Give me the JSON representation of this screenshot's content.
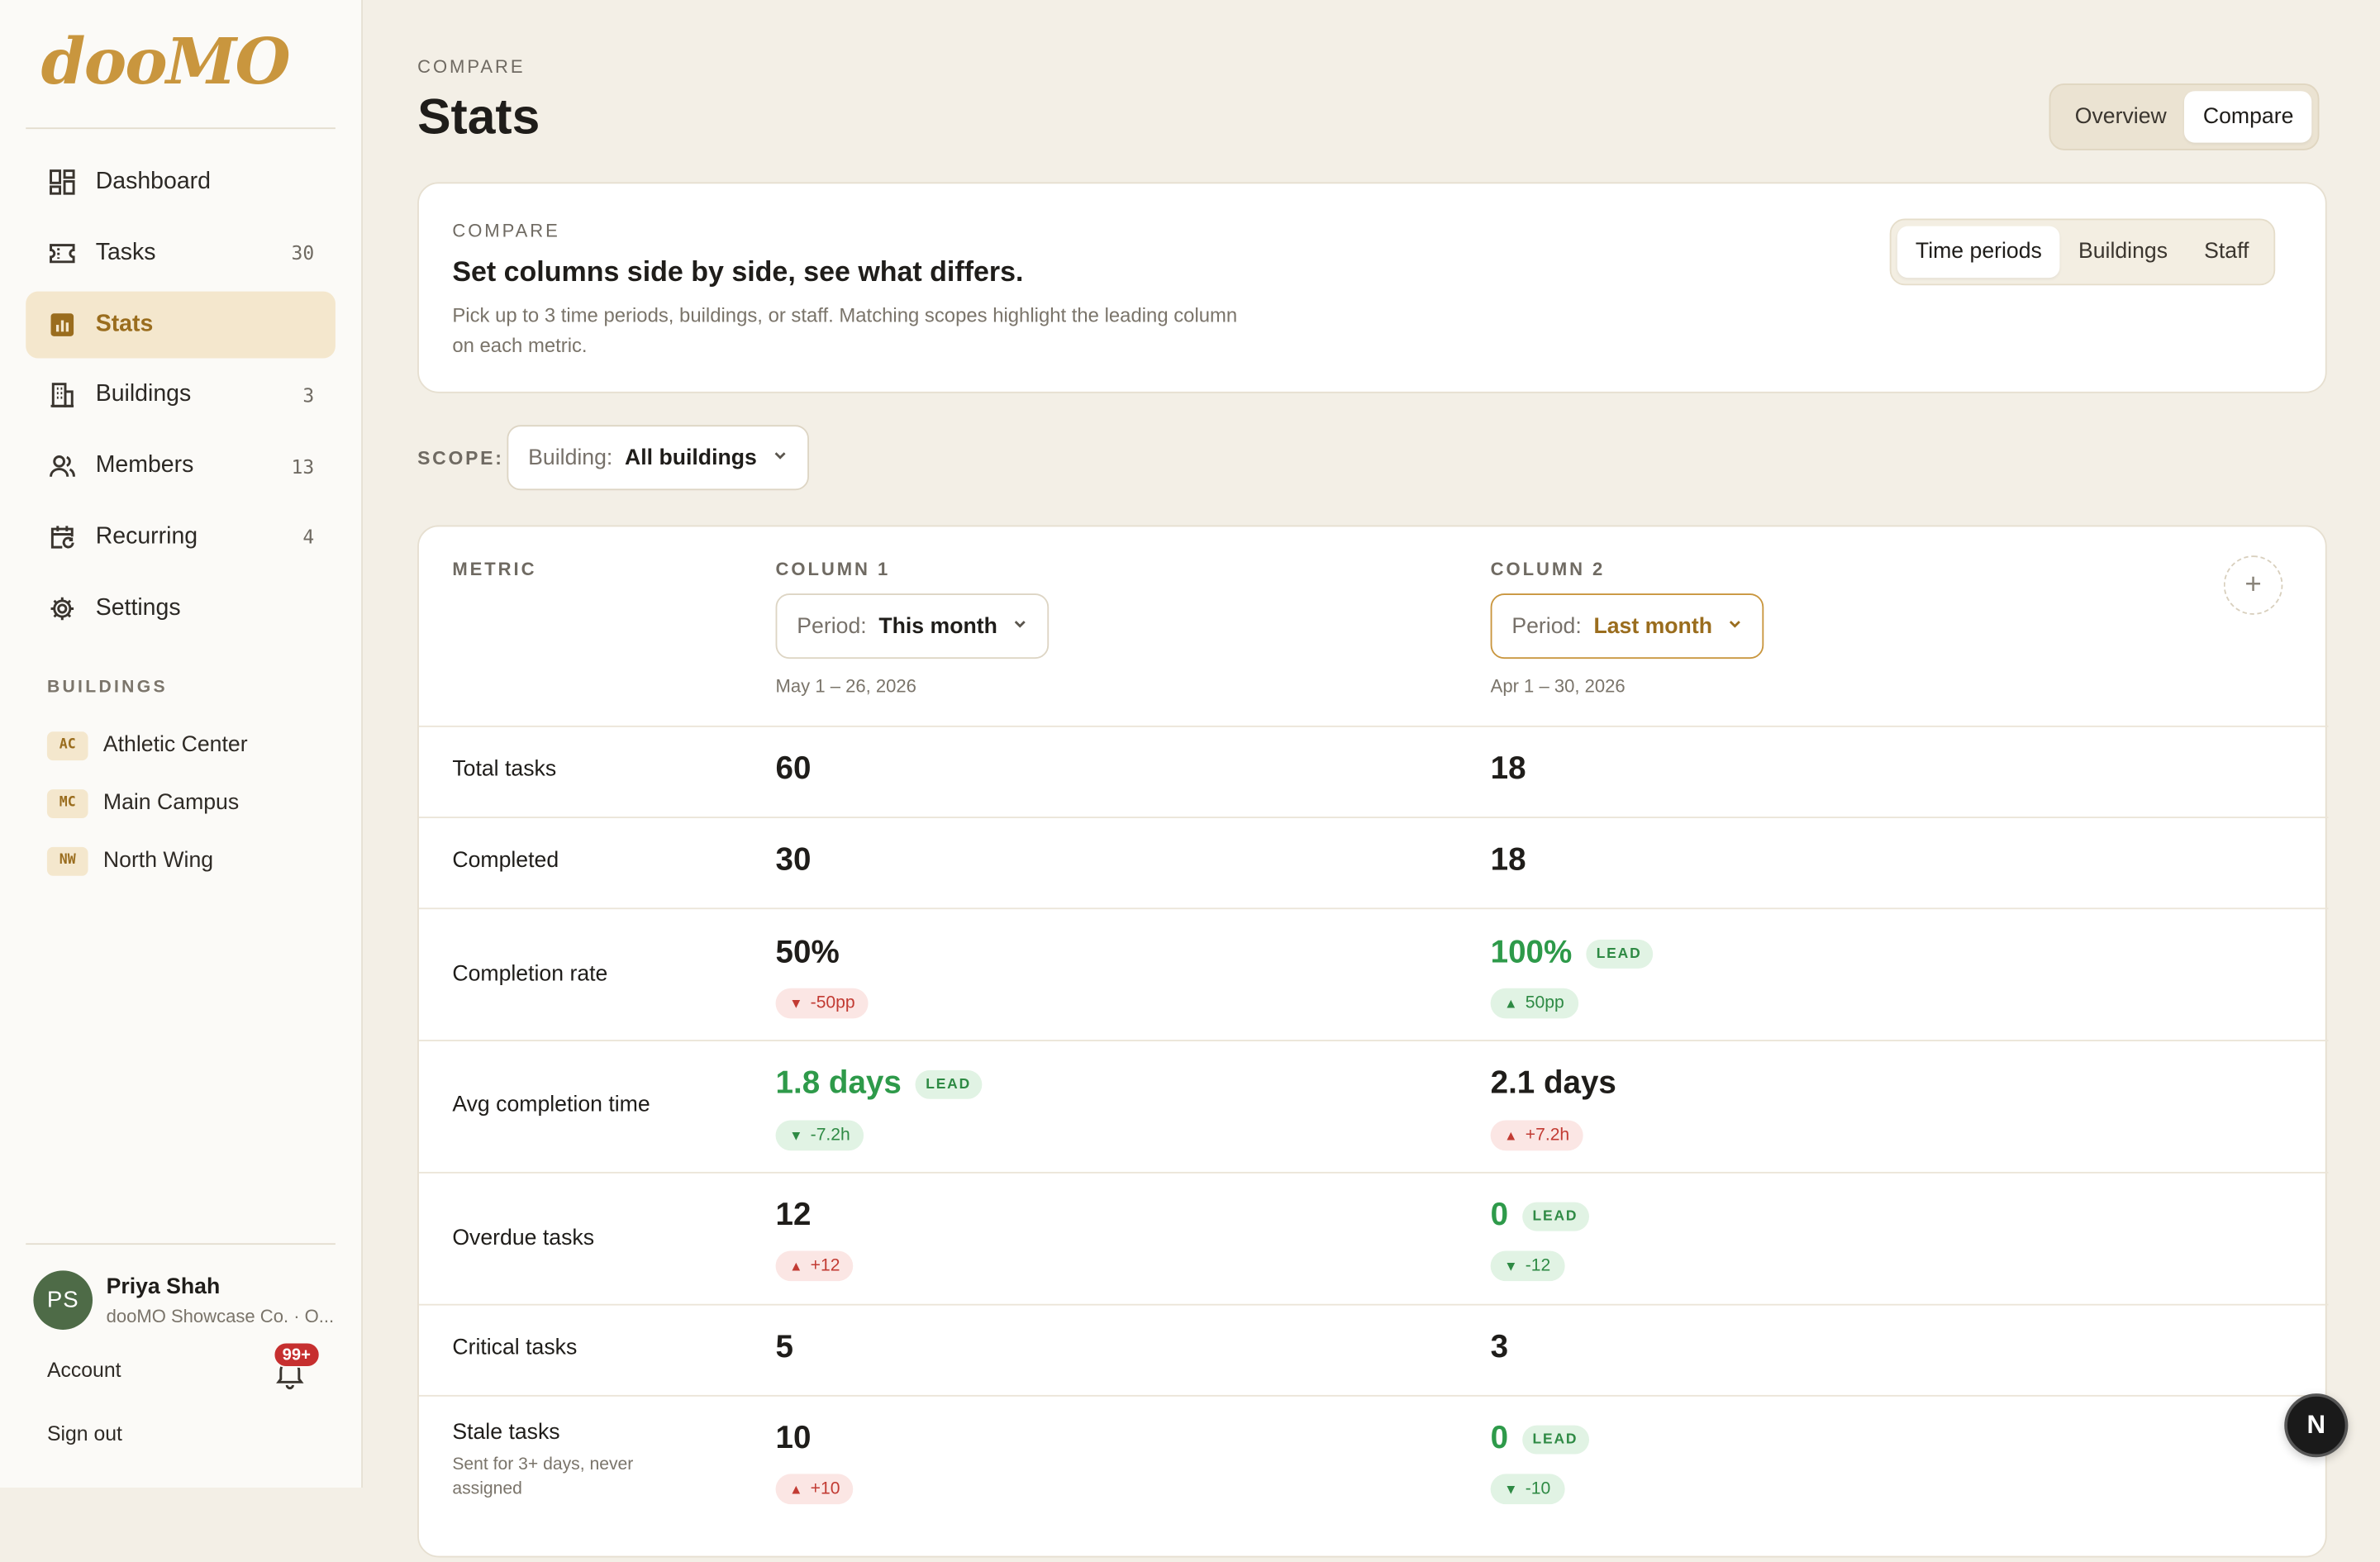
{
  "app": {
    "logo": "dooMO"
  },
  "sidebar": {
    "items": [
      {
        "label": "Dashboard",
        "count": "",
        "icon": "dashboard-icon"
      },
      {
        "label": "Tasks",
        "count": "30",
        "icon": "ticket-icon"
      },
      {
        "label": "Stats",
        "count": "",
        "icon": "bar-chart-icon",
        "active": true
      },
      {
        "label": "Buildings",
        "count": "3",
        "icon": "building-icon"
      },
      {
        "label": "Members",
        "count": "13",
        "icon": "users-icon"
      },
      {
        "label": "Recurring",
        "count": "4",
        "icon": "calendar-repeat-icon"
      },
      {
        "label": "Settings",
        "count": "",
        "icon": "gear-icon"
      }
    ],
    "buildings_heading": "BUILDINGS",
    "buildings": [
      {
        "tag": "AC",
        "name": "Athletic Center"
      },
      {
        "tag": "MC",
        "name": "Main Campus"
      },
      {
        "tag": "NW",
        "name": "North Wing"
      }
    ],
    "user": {
      "initials": "PS",
      "name": "Priya Shah",
      "org": "dooMO Showcase Co. · O..."
    },
    "account_label": "Account",
    "notifications_badge": "99+",
    "signout_label": "Sign out"
  },
  "header": {
    "eyebrow": "COMPARE",
    "title": "Stats",
    "tabs": [
      {
        "label": "Overview"
      },
      {
        "label": "Compare",
        "selected": true
      }
    ]
  },
  "intro": {
    "eyebrow": "COMPARE",
    "title": "Set columns side by side, see what differs.",
    "description": "Pick up to 3 time periods, buildings, or staff. Matching scopes highlight the leading column on each metric.",
    "modes": [
      {
        "label": "Time periods",
        "selected": true
      },
      {
        "label": "Buildings"
      },
      {
        "label": "Staff"
      }
    ]
  },
  "scope": {
    "label": "SCOPE:",
    "select_key": "Building:",
    "select_value": "All buildings"
  },
  "table": {
    "metric_header": "METRIC",
    "columns": [
      {
        "header": "COLUMN 1",
        "select_key": "Period:",
        "select_value": "This month",
        "range": "May 1 – 26, 2026"
      },
      {
        "header": "COLUMN 2",
        "select_key": "Period:",
        "select_value": "Last month",
        "range": "Apr 1 – 30, 2026"
      }
    ],
    "lead_label": "LEAD",
    "rows": [
      {
        "metric": "Total tasks",
        "c1": "60",
        "c2": "18"
      },
      {
        "metric": "Completed",
        "c1": "30",
        "c2": "18"
      },
      {
        "metric": "Completion rate",
        "c1": "50%",
        "c1_delta": "-50pp",
        "c2": "100%",
        "c2_delta": "50pp"
      },
      {
        "metric": "Avg completion time",
        "c1": "1.8 days",
        "c1_delta": "-7.2h",
        "c2": "2.1 days",
        "c2_delta": "+7.2h"
      },
      {
        "metric": "Overdue tasks",
        "c1": "12",
        "c1_delta": "+12",
        "c2": "0",
        "c2_delta": "-12"
      },
      {
        "metric": "Critical tasks",
        "c1": "5",
        "c2": "3"
      },
      {
        "metric": "Stale tasks",
        "sub": "Sent for 3+ days, never assigned",
        "c1": "10",
        "c1_delta": "+10",
        "c2": "0",
        "c2_delta": "-10"
      }
    ]
  },
  "fab": {
    "label": "N"
  },
  "colors": {
    "accent": "#c9963e",
    "accent_dark": "#9a6d1e",
    "lead_green": "#2e9a4a",
    "bad_red": "#c23b33",
    "avatar": "#4e6b47"
  }
}
